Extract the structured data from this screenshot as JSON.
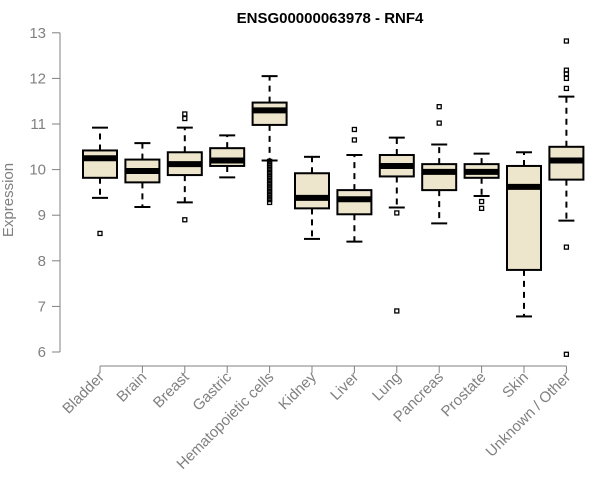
{
  "chart_data": {
    "type": "boxplot",
    "title": "ENSG00000063978 - RNF4",
    "xlabel": "",
    "ylabel": "Expression",
    "ylim": [
      6,
      13
    ],
    "yticks": [
      6,
      7,
      8,
      9,
      10,
      11,
      12,
      13
    ],
    "box_color": "#ede6cc",
    "series": [
      {
        "name": "Bladder",
        "whisker_low": 9.38,
        "q1": 9.82,
        "median": 10.25,
        "q3": 10.42,
        "whisker_high": 10.92,
        "outliers": [
          8.6
        ]
      },
      {
        "name": "Brain",
        "whisker_low": 9.18,
        "q1": 9.72,
        "median": 9.97,
        "q3": 10.22,
        "whisker_high": 10.58,
        "outliers": []
      },
      {
        "name": "Breast",
        "whisker_low": 9.28,
        "q1": 9.88,
        "median": 10.12,
        "q3": 10.38,
        "whisker_high": 10.92,
        "outliers": [
          8.9,
          11.12,
          11.22
        ]
      },
      {
        "name": "Gastric",
        "whisker_low": 9.83,
        "q1": 10.08,
        "median": 10.2,
        "q3": 10.47,
        "whisker_high": 10.75,
        "outliers": []
      },
      {
        "name": "Hematopoietic cells",
        "whisker_low": 10.2,
        "q1": 10.98,
        "median": 11.3,
        "q3": 11.47,
        "whisker_high": 12.05,
        "outliers": [
          10.18,
          10.12,
          10.06,
          10.0,
          9.94,
          9.88,
          9.82,
          9.76,
          9.7,
          9.64,
          9.58,
          9.52,
          9.46,
          9.4,
          9.34,
          9.28
        ]
      },
      {
        "name": "Kidney",
        "whisker_low": 8.48,
        "q1": 9.15,
        "median": 9.38,
        "q3": 9.92,
        "whisker_high": 10.28,
        "outliers": []
      },
      {
        "name": "Liver",
        "whisker_low": 8.42,
        "q1": 9.02,
        "median": 9.35,
        "q3": 9.55,
        "whisker_high": 10.32,
        "outliers": [
          10.65,
          10.88
        ]
      },
      {
        "name": "Lung",
        "whisker_low": 9.17,
        "q1": 9.85,
        "median": 10.08,
        "q3": 10.32,
        "whisker_high": 10.7,
        "outliers": [
          9.05,
          6.9
        ]
      },
      {
        "name": "Pancreas",
        "whisker_low": 8.82,
        "q1": 9.55,
        "median": 9.95,
        "q3": 10.12,
        "whisker_high": 10.55,
        "outliers": [
          11.02,
          11.38
        ]
      },
      {
        "name": "Prostate",
        "whisker_low": 9.42,
        "q1": 9.82,
        "median": 9.95,
        "q3": 10.12,
        "whisker_high": 10.35,
        "outliers": [
          9.3,
          9.15
        ]
      },
      {
        "name": "Skin",
        "whisker_low": 6.78,
        "q1": 7.8,
        "median": 9.62,
        "q3": 10.08,
        "whisker_high": 10.38,
        "outliers": []
      },
      {
        "name": "Unknown / Other",
        "whisker_low": 8.88,
        "q1": 9.78,
        "median": 10.2,
        "q3": 10.5,
        "whisker_high": 11.6,
        "outliers": [
          8.3,
          5.95,
          11.78,
          12.0,
          12.1,
          12.18,
          12.82
        ]
      }
    ]
  }
}
